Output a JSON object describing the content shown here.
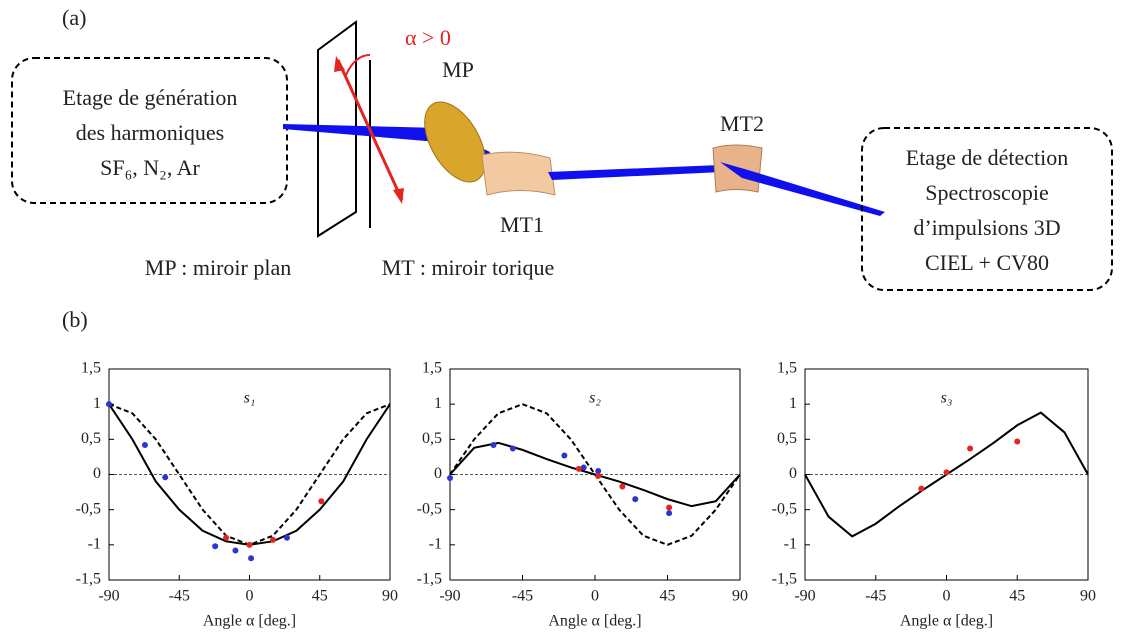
{
  "diagram": {
    "panel": "(a)",
    "angle": "α > 0",
    "source_box": [
      "Etage de génération",
      "des harmoniques",
      "SF₆, N₂, Ar"
    ],
    "mp": "MP",
    "mt1": "MT1",
    "mt2": "MT2",
    "detector_box": [
      "Etage de détection",
      "Spectroscopie",
      "d’impulsions 3D",
      "CIEL + CV80"
    ],
    "legend_mp": "MP : miroir plan",
    "legend_mt": "MT : miroir torique"
  },
  "panel_b": "(b)",
  "chart_data": [
    {
      "type": "line",
      "title": "s₁",
      "x_label": "Angle α [deg.]",
      "xlim": [
        -90,
        90
      ],
      "xticks": [
        -90,
        -45,
        0,
        45,
        90
      ],
      "ylim": [
        -1.5,
        1.5
      ],
      "yticks": [
        {
          "value": -1.5,
          "label": "-1,5"
        },
        -1,
        {
          "value": -0.5,
          "label": "-0,5"
        },
        0,
        {
          "value": 0.5,
          "label": "0,5"
        },
        1,
        {
          "value": 1.5,
          "label": "1,5"
        }
      ],
      "series": [
        {
          "style": "solid",
          "color": "#000000",
          "x": [
            -90,
            -75,
            -60,
            -45,
            -30,
            -15,
            0,
            15,
            30,
            45,
            60,
            75,
            90
          ],
          "values": [
            1,
            0.5,
            -0.1,
            -0.5,
            -0.8,
            -0.95,
            -1,
            -0.95,
            -0.8,
            -0.5,
            -0.1,
            0.5,
            1
          ]
        },
        {
          "style": "dashed",
          "color": "#000000",
          "x": [
            -90,
            -75,
            -60,
            -45,
            -30,
            -15,
            0,
            15,
            30,
            45,
            60,
            75,
            90
          ],
          "values": [
            1,
            0.87,
            0.5,
            0,
            -0.5,
            -0.87,
            -1,
            -0.87,
            -0.5,
            0,
            0.5,
            0.87,
            1
          ]
        },
        {
          "style": "dots",
          "color": "#2a35d4",
          "x": [
            -90,
            -67,
            -54,
            -22,
            -9,
            1,
            24
          ],
          "values": [
            1,
            0.42,
            -0.04,
            -1.02,
            -1.08,
            -1.19,
            -0.9
          ]
        },
        {
          "style": "dots",
          "color": "#e3241f",
          "x": [
            -15,
            0,
            15,
            46
          ],
          "values": [
            -0.9,
            -1,
            -0.93,
            -0.38
          ]
        }
      ]
    },
    {
      "type": "line",
      "title": "s₂",
      "x_label": "Angle α [deg.]",
      "xlim": [
        -90,
        90
      ],
      "xticks": [
        -90,
        -45,
        0,
        45,
        90
      ],
      "ylim": [
        -1.5,
        1.5
      ],
      "yticks": [
        {
          "value": -1.5,
          "label": "-1,5"
        },
        -1,
        {
          "value": -0.5,
          "label": "-0,5"
        },
        0,
        {
          "value": 0.5,
          "label": "0,5"
        },
        1,
        {
          "value": 1.5,
          "label": "1,5"
        }
      ],
      "series": [
        {
          "style": "solid",
          "color": "#000000",
          "x": [
            -90,
            -75,
            -60,
            -45,
            -30,
            -15,
            0,
            15,
            30,
            45,
            60,
            75,
            90
          ],
          "values": [
            0,
            0.38,
            0.45,
            0.35,
            0.22,
            0.1,
            0,
            -0.1,
            -0.22,
            -0.35,
            -0.45,
            -0.38,
            0
          ]
        },
        {
          "style": "dashed",
          "color": "#000000",
          "x": [
            -90,
            -75,
            -60,
            -45,
            -30,
            -15,
            0,
            15,
            30,
            45,
            60,
            75,
            90
          ],
          "values": [
            0,
            0.5,
            0.87,
            1,
            0.87,
            0.5,
            0,
            -0.5,
            -0.87,
            -1,
            -0.87,
            -0.5,
            0
          ]
        },
        {
          "style": "dots",
          "color": "#2a35d4",
          "x": [
            -90,
            -63,
            -51,
            -19,
            -7,
            2,
            25,
            46
          ],
          "values": [
            -0.05,
            0.42,
            0.37,
            0.27,
            0.1,
            0.05,
            -0.35,
            -0.55
          ]
        },
        {
          "style": "dots",
          "color": "#e3241f",
          "x": [
            -10,
            2,
            17,
            46
          ],
          "values": [
            0.08,
            -0.02,
            -0.17,
            -0.47
          ]
        }
      ]
    },
    {
      "type": "line",
      "title": "s₃",
      "x_label": "Angle α [deg.]",
      "xlim": [
        -90,
        90
      ],
      "xticks": [
        -90,
        -45,
        0,
        45,
        90
      ],
      "ylim": [
        -1.5,
        1.5
      ],
      "yticks": [
        {
          "value": -1.5,
          "label": "-1,5"
        },
        -1,
        {
          "value": -0.5,
          "label": "-0,5"
        },
        0,
        {
          "value": 0.5,
          "label": "0,5"
        },
        1,
        {
          "value": 1.5,
          "label": "1,5"
        }
      ],
      "series": [
        {
          "style": "solid",
          "color": "#000000",
          "x": [
            -90,
            -75,
            -60,
            -45,
            -30,
            -15,
            0,
            15,
            30,
            45,
            60,
            75,
            90
          ],
          "values": [
            0,
            -0.6,
            -0.88,
            -0.7,
            -0.45,
            -0.22,
            0,
            0.22,
            0.45,
            0.7,
            0.88,
            0.6,
            0
          ]
        },
        {
          "style": "dots",
          "color": "#e3241f",
          "x": [
            -16,
            0,
            15,
            45
          ],
          "values": [
            -0.2,
            0.03,
            0.37,
            0.47
          ]
        }
      ]
    }
  ]
}
